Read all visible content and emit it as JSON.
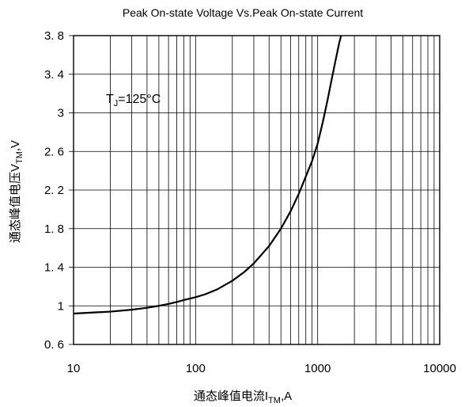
{
  "chart_data": {
    "type": "line",
    "title": "Peak On-state Voltage Vs.Peak On-state Current",
    "xlabel_prefix": "通态峰值电流I",
    "xlabel_sub": "TM",
    "xlabel_suffix": ",A",
    "ylabel_prefix": "通态峰值电压V",
    "ylabel_sub": "TM",
    "ylabel_suffix": ",V",
    "annotation_main": "T",
    "annotation_sub": "J",
    "annotation_tail": "=125°C",
    "x_scale": "log",
    "xlim": [
      10,
      10000
    ],
    "ylim": [
      0.6,
      3.8
    ],
    "x_ticks": [
      10,
      100,
      1000,
      10000
    ],
    "x_tick_labels": [
      "10",
      "100",
      "1000",
      "10000"
    ],
    "y_ticks": [
      0.6,
      1,
      1.4,
      1.8,
      2.2,
      2.6,
      3,
      3.4,
      3.8
    ],
    "y_tick_labels": [
      "0. 6",
      "1",
      "1. 4",
      "1. 8",
      "2. 2",
      "2. 6",
      "3",
      "3. 4",
      "3. 8"
    ],
    "grid": true,
    "series": [
      {
        "x": [
          10,
          20,
          30,
          40,
          50,
          60,
          70,
          80,
          100,
          120,
          150,
          200,
          250,
          300,
          400,
          500,
          600,
          700,
          800,
          900,
          1000,
          1100,
          1200,
          1300,
          1400,
          1500,
          1600
        ],
        "y": [
          0.92,
          0.94,
          0.96,
          0.98,
          1.0,
          1.02,
          1.04,
          1.06,
          1.09,
          1.12,
          1.17,
          1.26,
          1.35,
          1.44,
          1.62,
          1.8,
          1.98,
          2.16,
          2.34,
          2.5,
          2.68,
          2.9,
          3.12,
          3.34,
          3.54,
          3.72,
          3.86
        ]
      }
    ]
  }
}
